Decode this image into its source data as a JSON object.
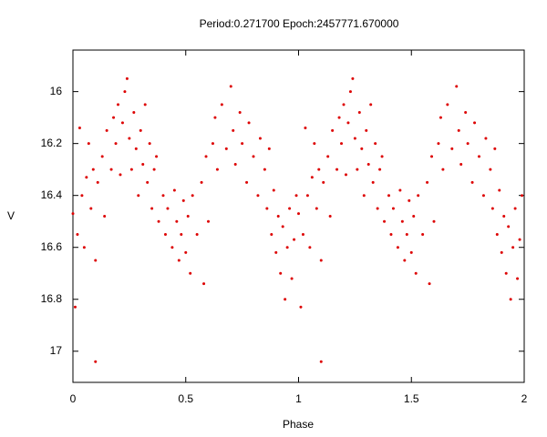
{
  "chart_data": {
    "type": "scatter",
    "title": "Period:0.271700 Epoch:2457771.670000",
    "x_label": "Phase",
    "y_label": "V",
    "xlim": [
      0,
      2
    ],
    "xticks": [
      0,
      0.5,
      1,
      1.5,
      2
    ],
    "ylim": [
      15.84,
      17.12
    ],
    "yticks": [
      16,
      16.2,
      16.4,
      16.6,
      16.8,
      17
    ],
    "y_inverted": true,
    "grid": false,
    "color": "#dd0000",
    "x": [
      0,
      0.01,
      0.02,
      0.03,
      0.04,
      0.05,
      0.06,
      0.07,
      0.08,
      0.09,
      0.1,
      0.1,
      0.11,
      0.13,
      0.14,
      0.15,
      0.17,
      0.18,
      0.19,
      0.2,
      0.21,
      0.22,
      0.23,
      0.24,
      0.25,
      0.26,
      0.27,
      0.28,
      0.29,
      0.3,
      0.31,
      0.32,
      0.33,
      0.34,
      0.35,
      0.36,
      0.37,
      0.38,
      0.4,
      0.41,
      0.42,
      0.44,
      0.45,
      0.46,
      0.47,
      0.48,
      0.49,
      0.5,
      0.51,
      0.52,
      0.53,
      0.55,
      0.57,
      0.58,
      0.59,
      0.6,
      0.62,
      0.63,
      0.64,
      0.66,
      0.68,
      0.7,
      0.71,
      0.72,
      0.74,
      0.75,
      0.77,
      0.78,
      0.8,
      0.82,
      0.83,
      0.85,
      0.86,
      0.87,
      0.88,
      0.89,
      0.9,
      0.91,
      0.92,
      0.93,
      0.94,
      0.95,
      0.96,
      0.97,
      0.98,
      0.99,
      1,
      1.01,
      1.02,
      1.03,
      1.04,
      1.05,
      1.06,
      1.07,
      1.08,
      1.09,
      1.1,
      1.1,
      1.11,
      1.13,
      1.14,
      1.15,
      1.17,
      1.18,
      1.19,
      1.2,
      1.21,
      1.22,
      1.23,
      1.24,
      1.25,
      1.26,
      1.27,
      1.28,
      1.29,
      1.3,
      1.31,
      1.32,
      1.33,
      1.34,
      1.35,
      1.36,
      1.37,
      1.38,
      1.4,
      1.41,
      1.42,
      1.44,
      1.45,
      1.46,
      1.47,
      1.48,
      1.49,
      1.5,
      1.51,
      1.52,
      1.53,
      1.55,
      1.57,
      1.58,
      1.59,
      1.6,
      1.62,
      1.63,
      1.64,
      1.66,
      1.68,
      1.7,
      1.71,
      1.72,
      1.74,
      1.75,
      1.77,
      1.78,
      1.8,
      1.82,
      1.83,
      1.85,
      1.86,
      1.87,
      1.88,
      1.89,
      1.9,
      1.91,
      1.92,
      1.93,
      1.94,
      1.95,
      1.96,
      1.97,
      1.98,
      1.99
    ],
    "values": [
      16.47,
      16.83,
      16.55,
      16.14,
      16.4,
      16.6,
      16.33,
      16.2,
      16.45,
      16.3,
      17.04,
      16.65,
      16.35,
      16.25,
      16.48,
      16.15,
      16.3,
      16.1,
      16.2,
      16.05,
      16.32,
      16.12,
      16,
      15.95,
      16.18,
      16.3,
      16.08,
      16.22,
      16.4,
      16.15,
      16.28,
      16.05,
      16.35,
      16.2,
      16.45,
      16.3,
      16.25,
      16.5,
      16.4,
      16.55,
      16.45,
      16.6,
      16.38,
      16.5,
      16.65,
      16.55,
      16.42,
      16.62,
      16.48,
      16.7,
      16.4,
      16.55,
      16.35,
      16.74,
      16.25,
      16.5,
      16.2,
      16.1,
      16.3,
      16.05,
      16.22,
      15.98,
      16.15,
      16.28,
      16.08,
      16.2,
      16.35,
      16.12,
      16.25,
      16.4,
      16.18,
      16.3,
      16.45,
      16.22,
      16.55,
      16.38,
      16.62,
      16.48,
      16.7,
      16.52,
      16.8,
      16.6,
      16.45,
      16.72,
      16.57,
      16.4,
      16.47,
      16.83,
      16.55,
      16.14,
      16.4,
      16.6,
      16.33,
      16.2,
      16.45,
      16.3,
      17.04,
      16.65,
      16.35,
      16.25,
      16.48,
      16.15,
      16.3,
      16.1,
      16.2,
      16.05,
      16.32,
      16.12,
      16,
      15.95,
      16.18,
      16.3,
      16.08,
      16.22,
      16.4,
      16.15,
      16.28,
      16.05,
      16.35,
      16.2,
      16.45,
      16.3,
      16.25,
      16.5,
      16.4,
      16.55,
      16.45,
      16.6,
      16.38,
      16.5,
      16.65,
      16.55,
      16.42,
      16.62,
      16.48,
      16.7,
      16.4,
      16.55,
      16.35,
      16.74,
      16.25,
      16.5,
      16.2,
      16.1,
      16.3,
      16.05,
      16.22,
      15.98,
      16.15,
      16.28,
      16.08,
      16.2,
      16.35,
      16.12,
      16.25,
      16.4,
      16.18,
      16.3,
      16.45,
      16.22,
      16.55,
      16.38,
      16.62,
      16.48,
      16.7,
      16.52,
      16.8,
      16.6,
      16.45,
      16.72,
      16.57,
      16.4
    ]
  }
}
